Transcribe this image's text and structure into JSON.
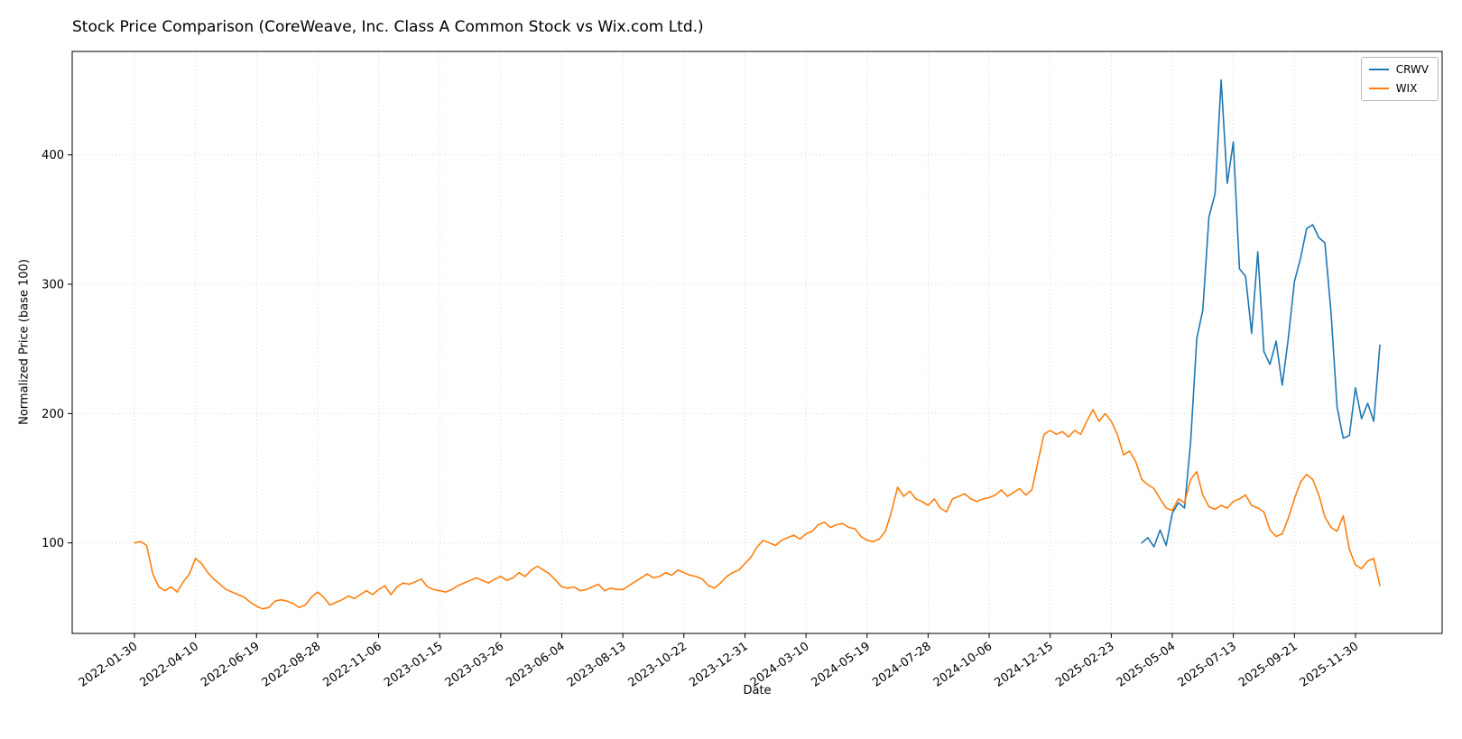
{
  "chart_data": {
    "type": "line",
    "title": "Stock Price Comparison (CoreWeave, Inc. Class A Common Stock vs Wix.com Ltd.)",
    "xlabel": "Date",
    "ylabel": "Normalized Price (base 100)",
    "ylim": [
      30,
      480
    ],
    "yticks": [
      100,
      200,
      300,
      400
    ],
    "grid": true,
    "legend_position": "upper right",
    "x_sampling": "weekly",
    "x_tick_interval_weeks": 10,
    "x_tick_labels": [
      "2022-01-30",
      "2022-04-10",
      "2022-06-19",
      "2022-08-28",
      "2022-11-06",
      "2023-01-15",
      "2023-03-26",
      "2023-06-04",
      "2023-08-13",
      "2023-10-22",
      "2023-12-31",
      "2024-03-10",
      "2024-05-19",
      "2024-07-28",
      "2024-10-06",
      "2024-12-15",
      "2025-02-23",
      "2025-05-04",
      "2025-07-13",
      "2025-09-21",
      "2025-11-30"
    ],
    "series": [
      {
        "name": "CRWV",
        "color": "#1f77b4",
        "start_week": 165,
        "values": [
          100,
          104,
          97,
          110,
          98,
          123,
          131,
          127,
          178,
          258,
          280,
          352,
          370,
          458,
          378,
          410,
          312,
          306,
          262,
          325,
          248,
          238,
          256,
          222,
          258,
          302,
          320,
          343,
          346,
          336,
          332,
          278,
          205,
          181,
          183,
          220,
          196,
          208,
          194,
          253
        ]
      },
      {
        "name": "WIX",
        "color": "#ff7f0e",
        "start_week": 0,
        "values": [
          100,
          101,
          98,
          76,
          66,
          63,
          66,
          62,
          70,
          76,
          88,
          84,
          77,
          72,
          68,
          64,
          62,
          60,
          58,
          54,
          51,
          49,
          50,
          55,
          56,
          55,
          53,
          50,
          52,
          58,
          62,
          58,
          52,
          54,
          56,
          59,
          57,
          60,
          63,
          60,
          64,
          67,
          60,
          66,
          69,
          68,
          70,
          72,
          66,
          64,
          63,
          62,
          64,
          67,
          69,
          71,
          73,
          71,
          69,
          72,
          74,
          71,
          73,
          77,
          74,
          79,
          82,
          79,
          76,
          71,
          66,
          65,
          66,
          63,
          64,
          66,
          68,
          63,
          65,
          64,
          64,
          67,
          70,
          73,
          76,
          73,
          74,
          77,
          75,
          79,
          77,
          75,
          74,
          72,
          67,
          65,
          69,
          74,
          77,
          79,
          84,
          89,
          97,
          102,
          100,
          98,
          102,
          104,
          106,
          103,
          107,
          109,
          114,
          116,
          112,
          114,
          115,
          112,
          111,
          105,
          102,
          101,
          103,
          109,
          124,
          143,
          136,
          140,
          134,
          132,
          129,
          134,
          127,
          124,
          134,
          136,
          138,
          134,
          132,
          134,
          135,
          137,
          141,
          136,
          139,
          142,
          137,
          141,
          163,
          184,
          187,
          184,
          186,
          182,
          187,
          184,
          194,
          203,
          194,
          200,
          194,
          184,
          168,
          171,
          163,
          149,
          145,
          142,
          134,
          127,
          125,
          134,
          131,
          149,
          155,
          137,
          128,
          126,
          129,
          127,
          132,
          134,
          137,
          129,
          127,
          124,
          110,
          105,
          107,
          119,
          134,
          147,
          153,
          149,
          137,
          120,
          112,
          109,
          121,
          95,
          83,
          80,
          86,
          88,
          67
        ]
      }
    ]
  },
  "legend": {
    "items": [
      {
        "label": "CRWV"
      },
      {
        "label": "WIX"
      }
    ]
  }
}
